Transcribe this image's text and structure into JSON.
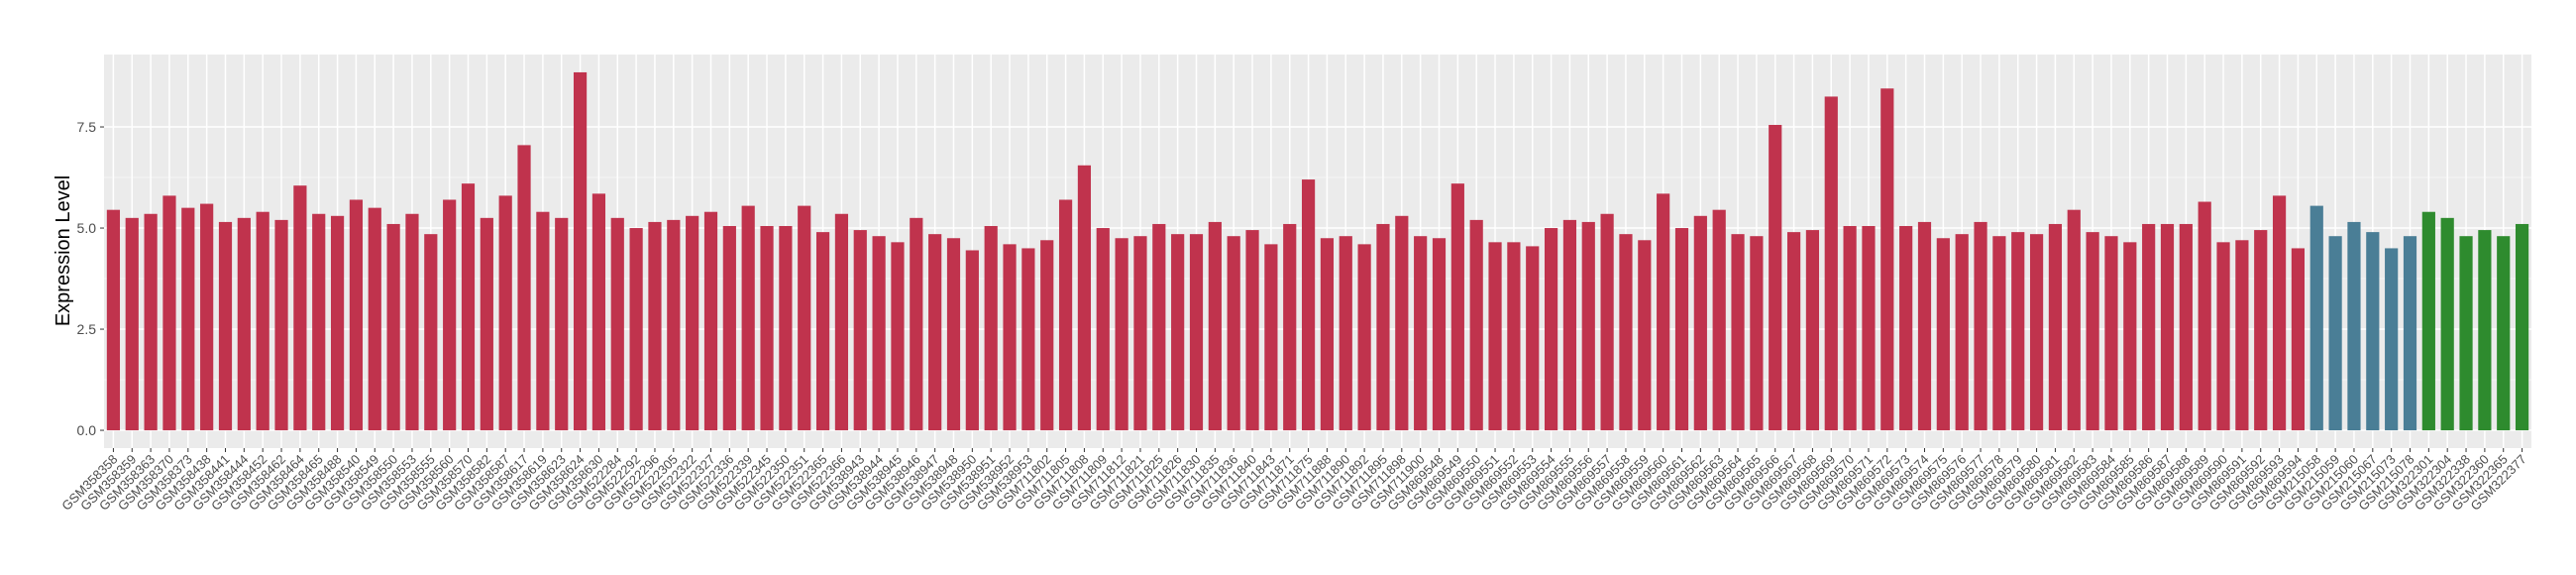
{
  "chart_data": {
    "type": "bar",
    "ylabel": "Expression Level",
    "categories": [
      "GSM358358",
      "GSM358359",
      "GSM358363",
      "GSM358370",
      "GSM358373",
      "GSM358438",
      "GSM358441",
      "GSM358444",
      "GSM358452",
      "GSM358462",
      "GSM358464",
      "GSM358465",
      "GSM358488",
      "GSM358540",
      "GSM358549",
      "GSM358550",
      "GSM358553",
      "GSM358555",
      "GSM358560",
      "GSM358570",
      "GSM358582",
      "GSM358587",
      "GSM358617",
      "GSM358619",
      "GSM358623",
      "GSM358624",
      "GSM358630",
      "GSM522284",
      "GSM522292",
      "GSM522296",
      "GSM522305",
      "GSM522322",
      "GSM522327",
      "GSM522336",
      "GSM522339",
      "GSM522345",
      "GSM522350",
      "GSM522351",
      "GSM522365",
      "GSM522366",
      "GSM538943",
      "GSM538944",
      "GSM538945",
      "GSM538946",
      "GSM538947",
      "GSM538948",
      "GSM538950",
      "GSM538951",
      "GSM538952",
      "GSM538953",
      "GSM711802",
      "GSM711805",
      "GSM711808",
      "GSM711809",
      "GSM711812",
      "GSM711821",
      "GSM711825",
      "GSM711826",
      "GSM711830",
      "GSM711835",
      "GSM711836",
      "GSM711840",
      "GSM711843",
      "GSM711871",
      "GSM711875",
      "GSM711888",
      "GSM711890",
      "GSM711892",
      "GSM711895",
      "GSM711898",
      "GSM711900",
      "GSM869548",
      "GSM869549",
      "GSM869550",
      "GSM869551",
      "GSM869552",
      "GSM869553",
      "GSM869554",
      "GSM869555",
      "GSM869556",
      "GSM869557",
      "GSM869558",
      "GSM869559",
      "GSM869560",
      "GSM869561",
      "GSM869562",
      "GSM869563",
      "GSM869564",
      "GSM869565",
      "GSM869566",
      "GSM869567",
      "GSM869568",
      "GSM869569",
      "GSM869570",
      "GSM869571",
      "GSM869572",
      "GSM869573",
      "GSM869574",
      "GSM869575",
      "GSM869576",
      "GSM869577",
      "GSM869578",
      "GSM869579",
      "GSM869580",
      "GSM869581",
      "GSM869582",
      "GSM869583",
      "GSM869584",
      "GSM869585",
      "GSM869586",
      "GSM869587",
      "GSM869588",
      "GSM869589",
      "GSM869590",
      "GSM869591",
      "GSM869592",
      "GSM869593",
      "GSM869594",
      "GSM215058",
      "GSM215059",
      "GSM215060",
      "GSM215067",
      "GSM215073",
      "GSM215078",
      "GSM322301",
      "GSM322304",
      "GSM322338",
      "GSM322360",
      "GSM322365",
      "GSM322377"
    ],
    "values": [
      5.45,
      5.25,
      5.35,
      5.8,
      5.5,
      5.6,
      5.15,
      5.25,
      5.4,
      5.2,
      6.05,
      5.35,
      5.3,
      5.7,
      5.5,
      5.1,
      5.35,
      4.85,
      5.7,
      6.1,
      5.25,
      5.8,
      7.05,
      5.4,
      5.25,
      8.85,
      5.85,
      5.25,
      5.0,
      5.15,
      5.2,
      5.3,
      5.4,
      5.05,
      5.55,
      5.05,
      5.05,
      5.55,
      4.9,
      5.35,
      4.95,
      4.8,
      4.65,
      5.25,
      4.85,
      4.75,
      4.45,
      5.05,
      4.6,
      4.5,
      4.7,
      5.7,
      6.55,
      5.0,
      4.75,
      4.8,
      5.1,
      4.85,
      4.85,
      5.15,
      4.8,
      4.95,
      4.6,
      5.1,
      6.2,
      4.75,
      4.8,
      4.6,
      5.1,
      5.3,
      4.8,
      4.75,
      6.1,
      5.2,
      4.65,
      4.65,
      4.55,
      5.0,
      5.2,
      5.15,
      5.35,
      4.85,
      4.7,
      5.85,
      5.0,
      5.3,
      5.45,
      4.85,
      4.8,
      7.55,
      4.9,
      4.95,
      8.25,
      5.05,
      5.05,
      8.45,
      5.05,
      5.15,
      4.75,
      4.85,
      5.15,
      4.8,
      4.9,
      4.85,
      5.1,
      5.45,
      4.9,
      4.8,
      4.65,
      5.1,
      5.1,
      5.1,
      5.65,
      4.65,
      4.7,
      4.95,
      5.8,
      4.5,
      5.55,
      4.8,
      5.15,
      4.9,
      4.5,
      4.8,
      5.4,
      5.25,
      4.8,
      4.95,
      4.8,
      5.1
    ],
    "colors": [
      "#c0334d",
      "#c0334d",
      "#c0334d",
      "#c0334d",
      "#c0334d",
      "#c0334d",
      "#c0334d",
      "#c0334d",
      "#c0334d",
      "#c0334d",
      "#c0334d",
      "#c0334d",
      "#c0334d",
      "#c0334d",
      "#c0334d",
      "#c0334d",
      "#c0334d",
      "#c0334d",
      "#c0334d",
      "#c0334d",
      "#c0334d",
      "#c0334d",
      "#c0334d",
      "#c0334d",
      "#c0334d",
      "#c0334d",
      "#c0334d",
      "#c0334d",
      "#c0334d",
      "#c0334d",
      "#c0334d",
      "#c0334d",
      "#c0334d",
      "#c0334d",
      "#c0334d",
      "#c0334d",
      "#c0334d",
      "#c0334d",
      "#c0334d",
      "#c0334d",
      "#c0334d",
      "#c0334d",
      "#c0334d",
      "#c0334d",
      "#c0334d",
      "#c0334d",
      "#c0334d",
      "#c0334d",
      "#c0334d",
      "#c0334d",
      "#c0334d",
      "#c0334d",
      "#c0334d",
      "#c0334d",
      "#c0334d",
      "#c0334d",
      "#c0334d",
      "#c0334d",
      "#c0334d",
      "#c0334d",
      "#c0334d",
      "#c0334d",
      "#c0334d",
      "#c0334d",
      "#c0334d",
      "#c0334d",
      "#c0334d",
      "#c0334d",
      "#c0334d",
      "#c0334d",
      "#c0334d",
      "#c0334d",
      "#c0334d",
      "#c0334d",
      "#c0334d",
      "#c0334d",
      "#c0334d",
      "#c0334d",
      "#c0334d",
      "#c0334d",
      "#c0334d",
      "#c0334d",
      "#c0334d",
      "#c0334d",
      "#c0334d",
      "#c0334d",
      "#c0334d",
      "#c0334d",
      "#c0334d",
      "#c0334d",
      "#c0334d",
      "#c0334d",
      "#c0334d",
      "#c0334d",
      "#c0334d",
      "#c0334d",
      "#c0334d",
      "#c0334d",
      "#c0334d",
      "#c0334d",
      "#c0334d",
      "#c0334d",
      "#c0334d",
      "#c0334d",
      "#c0334d",
      "#c0334d",
      "#c0334d",
      "#c0334d",
      "#c0334d",
      "#c0334d",
      "#c0334d",
      "#c0334d",
      "#c0334d",
      "#c0334d",
      "#c0334d",
      "#c0334d",
      "#c0334d",
      "#c0334d",
      "#4a7e96",
      "#4a7e96",
      "#4a7e96",
      "#4a7e96",
      "#4a7e96",
      "#4a7e96",
      "#2e8b2e",
      "#2e8b2e",
      "#2e8b2e",
      "#2e8b2e",
      "#2e8b2e",
      "#2e8b2e"
    ],
    "ylim": [
      -0.44,
      9.29
    ],
    "yticks": [
      {
        "value": 0,
        "label": "0.0"
      },
      2.5,
      {
        "value": 5,
        "label": "5.0"
      },
      7.5
    ],
    "grid": true
  }
}
